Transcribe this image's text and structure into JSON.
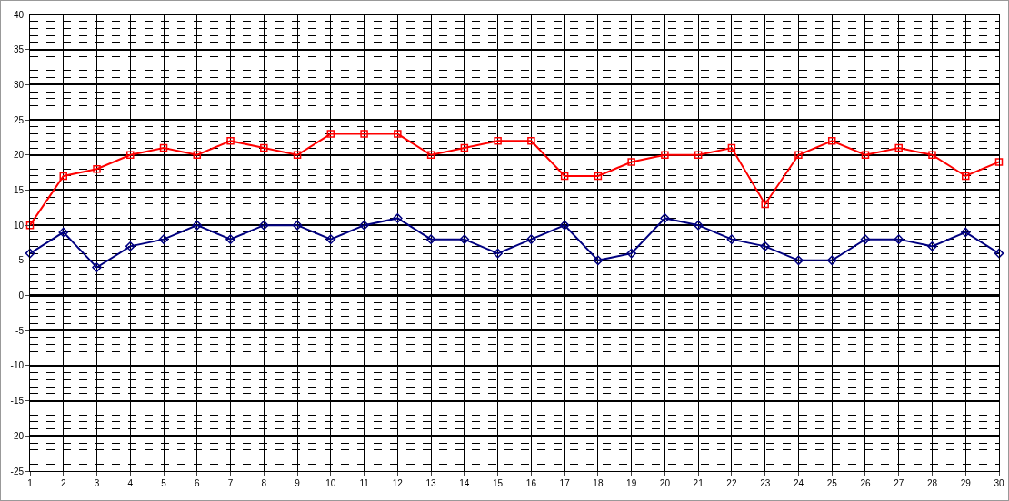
{
  "chart_data": {
    "type": "line",
    "x": [
      1,
      2,
      3,
      4,
      5,
      6,
      7,
      8,
      9,
      10,
      11,
      12,
      13,
      14,
      15,
      16,
      17,
      18,
      19,
      20,
      21,
      22,
      23,
      24,
      25,
      26,
      27,
      28,
      29,
      30
    ],
    "series": [
      {
        "color": "#ff0000",
        "marker": "square",
        "values": [
          10,
          17,
          18,
          20,
          21,
          20,
          22,
          21,
          20,
          23,
          23,
          23,
          20,
          21,
          22,
          22,
          17,
          17,
          19,
          20,
          20,
          21,
          13,
          20,
          22,
          20,
          21,
          20,
          17,
          19
        ]
      },
      {
        "color": "#000080",
        "marker": "diamond",
        "values": [
          6,
          9,
          4,
          7,
          8,
          10,
          8,
          10,
          10,
          8,
          10,
          11,
          8,
          8,
          6,
          8,
          10,
          5,
          6,
          11,
          10,
          8,
          7,
          5,
          5,
          8,
          8,
          7,
          9,
          6
        ]
      }
    ],
    "xlim": [
      1,
      30
    ],
    "xticks": [
      1,
      2,
      3,
      4,
      5,
      6,
      7,
      8,
      9,
      10,
      11,
      12,
      13,
      14,
      15,
      16,
      17,
      18,
      19,
      20,
      21,
      22,
      23,
      24,
      25,
      26,
      27,
      28,
      29,
      30
    ],
    "ylim": [
      -25,
      40
    ],
    "yticks": [
      -25,
      -20,
      -15,
      -10,
      -5,
      0,
      5,
      10,
      15,
      20,
      25,
      30,
      35,
      40
    ],
    "grid": true,
    "line_style": "solid"
  }
}
